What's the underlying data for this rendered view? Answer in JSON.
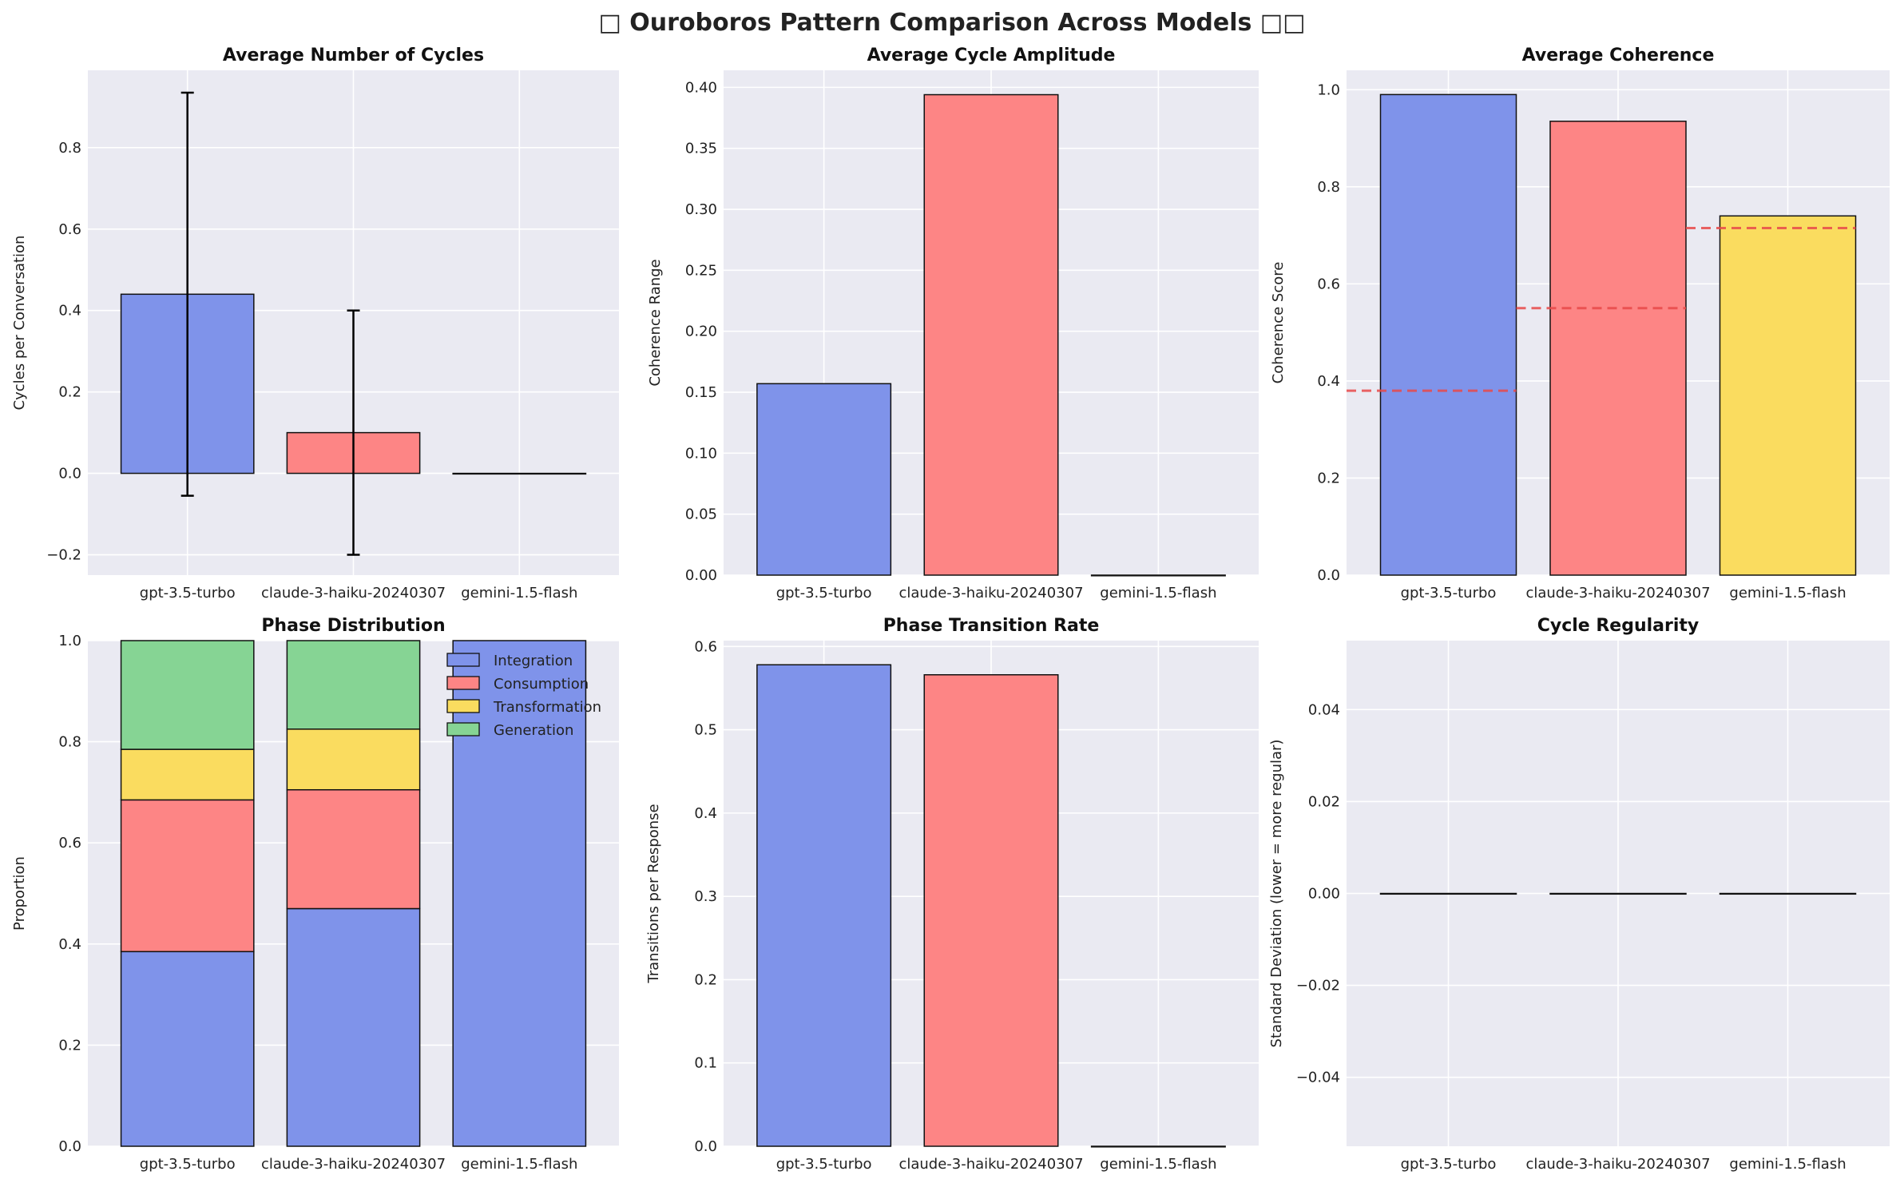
{
  "figure": {
    "title": "□ Ouroboros Pattern Comparison Across Models □□"
  },
  "colors": {
    "gpt": "#7f93ea",
    "claude": "#fd8585",
    "gemini": "#fadc5f",
    "generation": "#86d494",
    "panel_bg": "#eaeaf2",
    "grid": "#ffffff",
    "edge": "#111111",
    "reference_line": "#e84a4a"
  },
  "chart_data": [
    {
      "id": "cycles",
      "type": "bar",
      "title": "Average Number of Cycles",
      "ylabel": "Cycles per Conversation",
      "categories": [
        "gpt-3.5-turbo",
        "claude-3-haiku-20240307",
        "gemini-1.5-flash"
      ],
      "values": [
        0.44,
        0.1,
        0.0
      ],
      "errors": [
        0.495,
        0.3,
        0.0
      ],
      "ylim": [
        -0.25,
        0.99
      ],
      "yticks": [
        -0.2,
        0.0,
        0.2,
        0.4,
        0.6,
        0.8
      ],
      "grid": true
    },
    {
      "id": "amplitude",
      "type": "bar",
      "title": "Average Cycle Amplitude",
      "ylabel": "Coherence Range",
      "categories": [
        "gpt-3.5-turbo",
        "claude-3-haiku-20240307",
        "gemini-1.5-flash"
      ],
      "values": [
        0.157,
        0.394,
        0.0
      ],
      "ylim": [
        0,
        0.414
      ],
      "yticks": [
        0.0,
        0.05,
        0.1,
        0.15,
        0.2,
        0.25,
        0.3,
        0.35,
        0.4
      ],
      "grid": true
    },
    {
      "id": "coherence",
      "type": "bar",
      "title": "Average Coherence",
      "ylabel": "Coherence Score",
      "categories": [
        "gpt-3.5-turbo",
        "claude-3-haiku-20240307",
        "gemini-1.5-flash"
      ],
      "values": [
        0.99,
        0.935,
        0.74
      ],
      "reference_values": [
        0.38,
        0.55,
        0.715
      ],
      "ylim": [
        0,
        1.04
      ],
      "yticks": [
        0.0,
        0.2,
        0.4,
        0.6,
        0.8,
        1.0
      ],
      "grid": true
    },
    {
      "id": "phase",
      "type": "bar",
      "stacked": true,
      "title": "Phase Distribution",
      "ylabel": "Proportion",
      "categories": [
        "gpt-3.5-turbo",
        "claude-3-haiku-20240307",
        "gemini-1.5-flash"
      ],
      "series": [
        {
          "name": "Integration",
          "values": [
            0.385,
            0.47,
            1.0
          ]
        },
        {
          "name": "Consumption",
          "values": [
            0.3,
            0.235,
            0.0
          ]
        },
        {
          "name": "Transformation",
          "values": [
            0.1,
            0.12,
            0.0
          ]
        },
        {
          "name": "Generation",
          "values": [
            0.215,
            0.175,
            0.0
          ]
        }
      ],
      "ylim": [
        0,
        1.0
      ],
      "yticks": [
        0.0,
        0.2,
        0.4,
        0.6,
        0.8,
        1.0
      ],
      "legend": "top-right",
      "grid": true
    },
    {
      "id": "transition",
      "type": "bar",
      "title": "Phase Transition Rate",
      "ylabel": "Transitions per Response",
      "categories": [
        "gpt-3.5-turbo",
        "claude-3-haiku-20240307",
        "gemini-1.5-flash"
      ],
      "values": [
        0.578,
        0.566,
        0.0
      ],
      "ylim": [
        0,
        0.607
      ],
      "yticks": [
        0.0,
        0.1,
        0.2,
        0.3,
        0.4,
        0.5,
        0.6
      ],
      "grid": true
    },
    {
      "id": "regularity",
      "type": "bar",
      "title": "Cycle Regularity",
      "ylabel": "Standard Deviation (lower = more regular)",
      "categories": [
        "gpt-3.5-turbo",
        "claude-3-haiku-20240307",
        "gemini-1.5-flash"
      ],
      "values": [
        0.0,
        0.0,
        0.0
      ],
      "ylim": [
        -0.055,
        0.055
      ],
      "yticks": [
        -0.04,
        -0.02,
        0.0,
        0.02,
        0.04
      ],
      "grid": true
    }
  ]
}
